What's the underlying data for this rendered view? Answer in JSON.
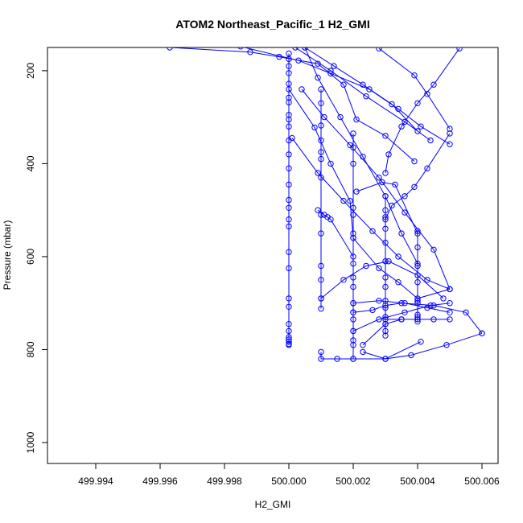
{
  "chart_data": {
    "type": "line",
    "title": "ATOM2 Northeast_Pacific_1 H2_GMI",
    "xlabel": "H2_GMI",
    "ylabel": "Pressure (mbar)",
    "xlim": [
      499.9925,
      500.0065
    ],
    "ylim": [
      1045,
      150
    ],
    "y_inverted": true,
    "xticks": [
      499.994,
      499.996,
      499.998,
      500.0,
      500.002,
      500.004,
      500.006
    ],
    "xtick_labels": [
      "499.994",
      "499.996",
      "499.998",
      "500.000",
      "500.002",
      "500.004",
      "500.006"
    ],
    "yticks": [
      200,
      400,
      600,
      800,
      1000
    ],
    "ytick_labels": [
      "200",
      "400",
      "600",
      "800",
      "1000"
    ],
    "grid": false,
    "series_color": "#0000ff",
    "series": [
      {
        "x": [
          500.0,
          500.0,
          500.0,
          500.0,
          500.0,
          500.0,
          500.0,
          500.0,
          500.0,
          500.0,
          500.0,
          500.0,
          500.0,
          500.0,
          500.0,
          500.0,
          500.0,
          500.0,
          500.0,
          500.0,
          500.0,
          500.0,
          500.0,
          500.0
        ],
        "y": [
          163,
          175,
          190,
          205,
          228,
          258,
          268,
          295,
          305,
          320,
          350,
          380,
          410,
          445,
          478,
          495,
          520,
          535,
          590,
          625,
          690,
          708,
          745,
          790
        ]
      },
      {
        "x": [
          500.0,
          500.0,
          500.0,
          500.0,
          500.0
        ],
        "y": [
          760,
          773,
          778,
          783,
          788
        ]
      },
      {
        "x": [
          500.001,
          500.001,
          500.001,
          500.001,
          500.001,
          500.001,
          500.001,
          500.001,
          500.001,
          500.001,
          500.001,
          500.001,
          500.001
        ],
        "y": [
          240,
          270,
          318,
          350,
          375,
          390,
          430,
          510,
          550,
          620,
          650,
          690,
          712
        ]
      },
      {
        "x": [
          500.002,
          500.002,
          500.002,
          500.002,
          500.002,
          500.002,
          500.002,
          500.002,
          500.002,
          500.002,
          500.002,
          500.002,
          500.002,
          500.002,
          500.002,
          500.002,
          500.002
        ],
        "y": [
          335,
          365,
          400,
          495,
          510,
          550,
          560,
          615,
          645,
          665,
          700,
          720,
          735,
          760,
          780,
          790,
          820
        ]
      },
      {
        "x": [
          500.003,
          500.003,
          500.003,
          500.003,
          500.003,
          500.003,
          500.003,
          500.003,
          500.003,
          500.003,
          500.003,
          500.003,
          500.003,
          500.003
        ],
        "y": [
          470,
          500,
          515,
          540,
          570,
          610,
          645,
          665,
          695,
          710,
          730,
          745,
          760,
          770
        ]
      },
      {
        "x": [
          500.004,
          500.004,
          500.004,
          500.004,
          500.004,
          500.004,
          500.004,
          500.004,
          500.004
        ],
        "y": [
          545,
          580,
          620,
          655,
          695,
          700,
          725,
          730,
          740
        ]
      },
      {
        "x": [
          499.9963,
          499.9988,
          499.9997,
          500.0009,
          500.0017,
          500.0021,
          500.003,
          500.0039
        ],
        "y": [
          150,
          160,
          170,
          185,
          230,
          305,
          340,
          395
        ]
      },
      {
        "x": [
          499.9985,
          500.0003,
          500.0013,
          500.0025,
          500.0034,
          500.0041,
          500.005
        ],
        "y": [
          148,
          178,
          206,
          240,
          282,
          320,
          358
        ]
      },
      {
        "x": [
          500.0002,
          500.0013,
          500.0024,
          500.0036,
          500.0044
        ],
        "y": [
          150,
          200,
          255,
          310,
          350
        ]
      },
      {
        "x": [
          500.0005,
          500.0014,
          500.0023,
          500.0032,
          500.004
        ],
        "y": [
          150,
          190,
          230,
          272,
          330
        ]
      },
      {
        "x": [
          500.0028,
          500.0039,
          500.0043,
          500.005
        ],
        "y": [
          152,
          210,
          250,
          325
        ]
      },
      {
        "x": [
          500.005,
          500.0043,
          500.0039,
          500.0036,
          500.0032,
          500.003
        ],
        "y": [
          335,
          410,
          450,
          470,
          490,
          520
        ]
      },
      {
        "x": [
          500.0053,
          500.0045,
          500.004,
          500.0035,
          500.0031,
          500.003
        ],
        "y": [
          152,
          230,
          270,
          320,
          380,
          420
        ]
      },
      {
        "x": [
          500.0005,
          500.0009,
          500.0016,
          500.0023,
          500.003,
          500.0035,
          500.004
        ],
        "y": [
          150,
          215,
          300,
          385,
          470,
          550,
          615
        ]
      },
      {
        "x": [
          500.0,
          500.0008,
          500.0013,
          500.0019,
          500.002,
          500.0028,
          500.0034,
          500.004,
          500.005
        ],
        "y": [
          240,
          322,
          400,
          480,
          560,
          625,
          655,
          690,
          670
        ]
      },
      {
        "x": [
          500.0001,
          500.0009,
          500.0017,
          500.0026,
          500.0034,
          500.0043,
          500.005
        ],
        "y": [
          345,
          420,
          480,
          545,
          600,
          650,
          670
        ]
      },
      {
        "x": [
          500.0004,
          500.0011,
          500.0019,
          500.0028,
          500.0036,
          500.0045,
          500.005
        ],
        "y": [
          240,
          300,
          360,
          430,
          505,
          585,
          670
        ]
      },
      {
        "x": [
          500.0009,
          500.0011,
          500.0012,
          500.0013,
          500.002
        ],
        "y": [
          500,
          510,
          515,
          520,
          600
        ]
      },
      {
        "x": [
          500.001,
          500.0017,
          500.0024,
          500.0031,
          500.004,
          500.0048
        ],
        "y": [
          690,
          650,
          620,
          610,
          640,
          690
        ]
      },
      {
        "x": [
          500.002,
          500.0028,
          500.0036,
          500.0043,
          500.005
        ],
        "y": [
          700,
          695,
          700,
          710,
          720
        ]
      },
      {
        "x": [
          500.002,
          500.0026,
          500.003,
          500.0035,
          500.0045,
          500.0055,
          500.006
        ],
        "y": [
          720,
          715,
          705,
          700,
          705,
          720,
          765
        ]
      },
      {
        "x": [
          500.006,
          500.0049,
          500.0038,
          500.003,
          500.0023
        ],
        "y": [
          765,
          790,
          812,
          820,
          805
        ]
      },
      {
        "x": [
          500.001,
          500.001,
          500.0015,
          500.002,
          500.003,
          500.0041
        ],
        "y": [
          805,
          820,
          820,
          820,
          820,
          783
        ]
      },
      {
        "x": [
          500.0023,
          500.003,
          500.0035
        ],
        "y": [
          790,
          745,
          735
        ]
      },
      {
        "x": [
          500.003,
          500.0035,
          500.004,
          500.0045,
          500.005
        ],
        "y": [
          735,
          735,
          735,
          735,
          735
        ]
      },
      {
        "x": [
          500.002,
          500.0028,
          500.0036,
          500.0044,
          500.005
        ],
        "y": [
          760,
          735,
          720,
          705,
          700
        ]
      },
      {
        "x": [
          500.0021,
          500.0029,
          500.0033,
          500.004
        ],
        "y": [
          460,
          440,
          445,
          550
        ]
      }
    ]
  }
}
